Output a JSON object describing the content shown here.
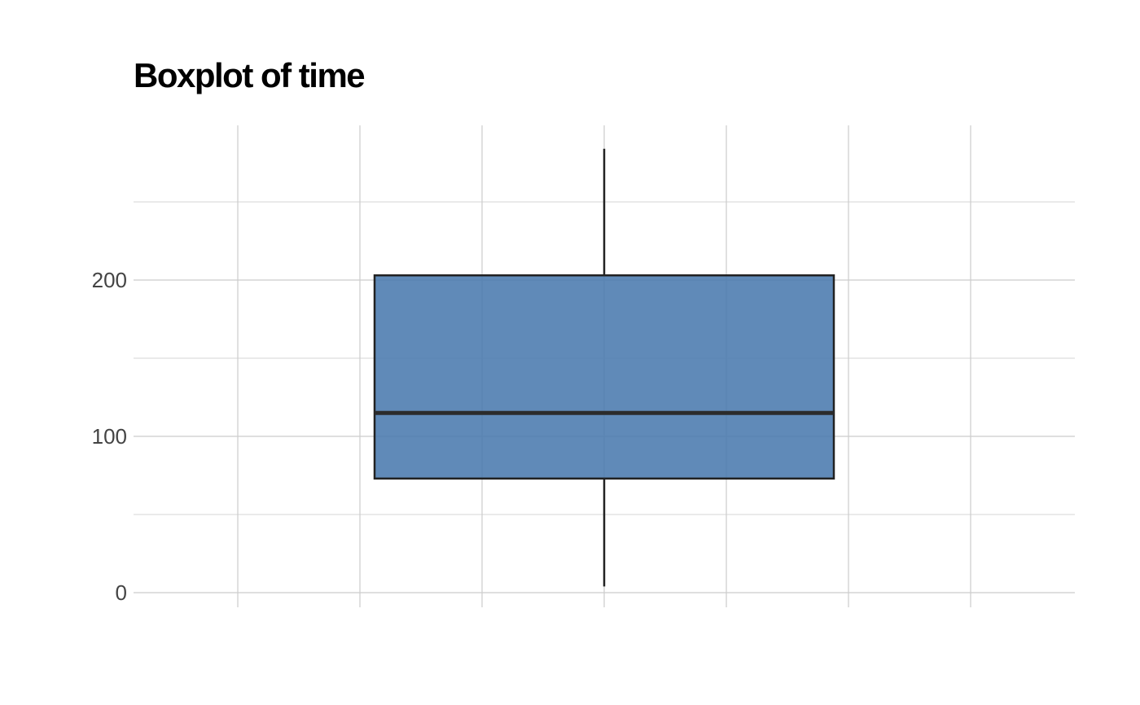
{
  "chart_data": {
    "type": "boxplot",
    "title": "Boxplot of time",
    "xlabel": "",
    "ylabel": "",
    "ylim": [
      -10,
      300
    ],
    "y_ticks": [
      0,
      100,
      200
    ],
    "y_tick_labels": [
      "0",
      "100",
      "200"
    ],
    "grid": true,
    "series": [
      {
        "whisker_low": 4,
        "q1": 73,
        "median": 115,
        "q3": 203,
        "whisker_high": 284
      }
    ],
    "colors": {
      "box_fill": "#4a7aae",
      "box_stroke": "#222222",
      "grid": "#cccccc",
      "median": "#2b2b2b"
    }
  }
}
